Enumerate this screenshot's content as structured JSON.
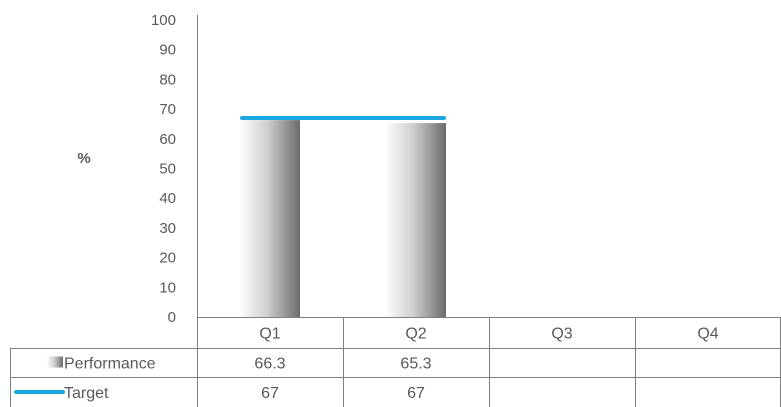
{
  "chart_data": {
    "type": "bar",
    "ylabel": "%",
    "ylim": [
      0,
      100
    ],
    "yticks": [
      0,
      10,
      20,
      30,
      40,
      50,
      60,
      70,
      80,
      90,
      100
    ],
    "categories": [
      "Q1",
      "Q2",
      "Q3",
      "Q4"
    ],
    "series": [
      {
        "name": "Performance",
        "type": "bar",
        "values": [
          66.3,
          65.3,
          null,
          null
        ],
        "labels": [
          "66.3",
          "65.3",
          "",
          ""
        ],
        "color": "#7a7a7a"
      },
      {
        "name": "Target",
        "type": "line",
        "values": [
          67,
          67,
          null,
          null
        ],
        "labels": [
          "67",
          "67",
          "",
          ""
        ],
        "color": "#1ba6e0"
      }
    ],
    "data_table": true,
    "grid": false
  }
}
